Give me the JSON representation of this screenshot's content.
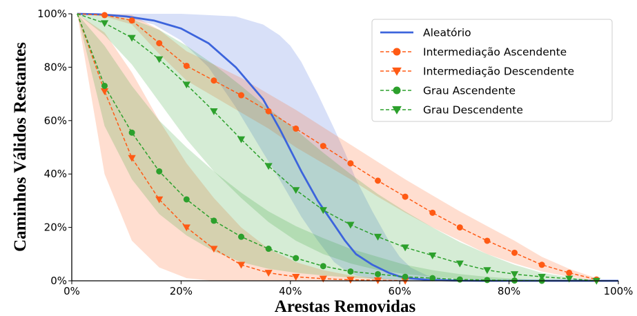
{
  "chart_data": {
    "type": "line",
    "title": "",
    "xlabel": "Arestas Removidas",
    "ylabel": "Caminhos Válidos Restantes",
    "xlim": [
      0,
      100
    ],
    "ylim": [
      0,
      100
    ],
    "x_ticks": [
      "0%",
      "20%",
      "40%",
      "60%",
      "80%",
      "100%"
    ],
    "y_ticks": [
      "0%",
      "20%",
      "40%",
      "60%",
      "80%",
      "100%"
    ],
    "grid": false,
    "legend_position": "top-right",
    "series": [
      {
        "name": "Aleatório",
        "color": "#3c64dc",
        "style": "solid",
        "marker": "none",
        "x": [
          1,
          5,
          10,
          15,
          20,
          25,
          30,
          35,
          38,
          40,
          42,
          45,
          48,
          50,
          52,
          55,
          58,
          60,
          62,
          65,
          70,
          75,
          80,
          90,
          100
        ],
        "y": [
          100,
          99.8,
          99,
          97.5,
          94.5,
          89,
          80,
          68,
          57,
          49,
          41,
          30,
          21,
          15,
          10,
          6,
          3,
          1.6,
          0.9,
          0.4,
          0.1,
          0,
          0,
          0,
          0
        ],
        "band_lower": [
          100,
          99.5,
          98.5,
          96,
          90,
          80,
          65,
          48,
          38,
          31,
          24,
          15,
          7,
          4,
          2,
          0.8,
          0.3,
          0.1,
          0,
          0,
          0,
          0,
          0,
          0,
          0
        ],
        "band_upper": [
          100,
          100,
          100,
          100,
          100,
          99.5,
          99,
          96,
          92,
          88,
          82,
          70,
          57,
          48,
          38,
          26,
          15,
          9,
          5,
          2,
          0.5,
          0,
          0,
          0,
          0
        ]
      },
      {
        "name": "Intermediação Ascendente",
        "color": "#ff5a14",
        "style": "dashed",
        "marker": "circle",
        "x": [
          1,
          6,
          11,
          16,
          21,
          26,
          31,
          36,
          41,
          46,
          51,
          56,
          61,
          66,
          71,
          76,
          81,
          86,
          91,
          96
        ],
        "y": [
          100,
          99.5,
          97.5,
          89,
          80.5,
          75,
          69.5,
          63.5,
          57,
          50.5,
          44,
          37.5,
          31.5,
          25.5,
          20,
          15,
          10.5,
          6,
          3,
          0.5
        ],
        "band_lower": [
          100,
          99,
          96,
          85,
          75,
          69,
          63,
          57,
          50,
          44,
          38,
          31.5,
          25.5,
          20,
          15,
          10,
          6.5,
          3.5,
          1.5,
          0
        ],
        "band_upper": [
          100,
          100,
          99.5,
          94,
          86,
          81,
          76,
          70,
          64,
          57.5,
          51,
          44.5,
          38,
          32,
          26,
          20.5,
          15,
          9,
          4.5,
          1
        ]
      },
      {
        "name": "Intermediação Descendente",
        "color": "#ff5a14",
        "style": "dashed",
        "marker": "triangle-down",
        "x": [
          1,
          6,
          11,
          16,
          21,
          26,
          31,
          36,
          41,
          46,
          51,
          56,
          61
        ],
        "y": [
          100,
          71,
          46,
          30.5,
          20,
          12,
          6,
          3,
          1.5,
          0.8,
          0.4,
          0.2,
          0
        ],
        "band_lower": [
          100,
          40,
          15,
          5,
          1,
          0,
          0,
          0,
          0,
          0,
          0,
          0,
          0
        ],
        "band_upper": [
          100,
          93,
          78,
          60,
          44,
          31,
          20,
          12,
          7,
          4,
          2,
          1,
          0.3
        ]
      },
      {
        "name": "Grau Ascendente",
        "color": "#2ca02c",
        "style": "dashed",
        "marker": "circle",
        "x": [
          1,
          6,
          11,
          16,
          21,
          26,
          31,
          36,
          41,
          46,
          51,
          56,
          61,
          66,
          71,
          76,
          81,
          86
        ],
        "y": [
          100,
          73,
          55.5,
          41,
          30.5,
          22.5,
          16.5,
          12,
          8.5,
          5.5,
          3.5,
          2.5,
          1.5,
          1,
          0.5,
          0.3,
          0.1,
          0
        ],
        "band_lower": [
          100,
          58,
          38,
          25,
          17,
          11,
          7,
          4.5,
          3,
          2,
          1.2,
          0.7,
          0.4,
          0.2,
          0.1,
          0,
          0,
          0
        ],
        "band_upper": [
          100,
          88,
          73,
          60,
          50,
          41,
          33,
          26,
          20.5,
          16,
          12,
          9,
          6,
          4,
          2.5,
          1.5,
          0.8,
          0.3
        ]
      },
      {
        "name": "Grau Descendente",
        "color": "#2ca02c",
        "style": "dashed",
        "marker": "triangle-down",
        "x": [
          1,
          6,
          11,
          16,
          21,
          26,
          31,
          36,
          41,
          46,
          51,
          56,
          61,
          66,
          71,
          76,
          81,
          86,
          91,
          96
        ],
        "y": [
          100,
          96.5,
          91,
          83,
          73.5,
          63.5,
          53,
          43,
          34,
          26.5,
          21,
          16.5,
          12.5,
          9.5,
          6.5,
          4,
          2.5,
          1.5,
          0.8,
          0
        ],
        "band_lower": [
          100,
          92,
          81,
          67,
          53,
          41,
          31,
          22,
          15,
          10,
          6.5,
          4,
          2.5,
          1.5,
          0.8,
          0.3,
          0.1,
          0,
          0,
          0
        ],
        "band_upper": [
          100,
          99.5,
          98,
          94,
          88,
          81,
          73,
          64.5,
          56.5,
          48,
          40,
          32.5,
          26,
          20,
          14.5,
          10,
          6,
          3,
          1.3,
          0.2
        ]
      }
    ]
  }
}
